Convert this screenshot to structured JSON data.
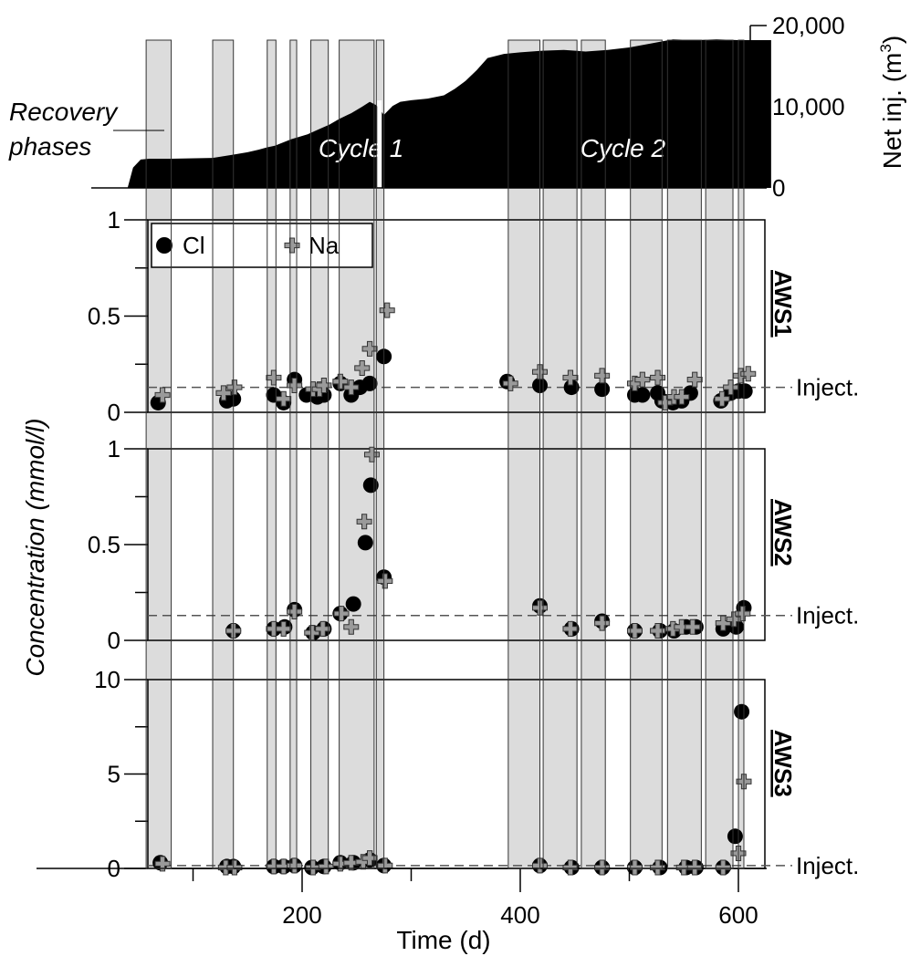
{
  "chart_data": {
    "type": "scatter",
    "x_axis": {
      "label": "Time (d)",
      "range": [
        40,
        630
      ],
      "ticks": [
        200,
        400,
        600
      ],
      "tick_labels": [
        "200",
        "400",
        "600"
      ],
      "minor_ticks": [
        100,
        300,
        500
      ]
    },
    "y_axis_label": "Concentration (mmol/l)",
    "recovery_phases_label_line1": "Recovery",
    "recovery_phases_label_line2": "phases",
    "recovery_phases": [
      [
        57,
        80
      ],
      [
        118,
        137
      ],
      [
        168,
        176
      ],
      [
        189,
        195
      ],
      [
        208,
        224
      ],
      [
        234,
        266
      ],
      [
        268,
        275
      ],
      [
        389,
        418
      ],
      [
        421,
        452
      ],
      [
        456,
        478
      ],
      [
        501,
        530
      ],
      [
        535,
        566
      ],
      [
        570,
        595
      ],
      [
        600,
        605
      ]
    ],
    "legend": {
      "entries": [
        {
          "name": "Cl",
          "marker": "circle"
        },
        {
          "name": "Na",
          "marker": "plus"
        }
      ]
    },
    "top_panel": {
      "ylabel": "Net inj. (m³)",
      "ylabel_main": "Net inj. (m",
      "ylabel_sup": "3",
      "ylabel_close": ")",
      "ylim": [
        0,
        20000
      ],
      "ticks": [
        0,
        10000,
        20000
      ],
      "tick_labels": [
        "0",
        "10,000",
        "20,000"
      ],
      "cycle_labels": [
        "Cycle 1",
        "Cycle 2"
      ],
      "cycle_label_x": [
        215,
        455
      ],
      "series": [
        {
          "x": 40,
          "y": 0
        },
        {
          "x": 45,
          "y": 2500
        },
        {
          "x": 52,
          "y": 3500
        },
        {
          "x": 60,
          "y": 3600
        },
        {
          "x": 80,
          "y": 3600
        },
        {
          "x": 118,
          "y": 3700
        },
        {
          "x": 137,
          "y": 4100
        },
        {
          "x": 150,
          "y": 4400
        },
        {
          "x": 160,
          "y": 4700
        },
        {
          "x": 168,
          "y": 5000
        },
        {
          "x": 175,
          "y": 5200
        },
        {
          "x": 190,
          "y": 6000
        },
        {
          "x": 205,
          "y": 6600
        },
        {
          "x": 215,
          "y": 7200
        },
        {
          "x": 225,
          "y": 7800
        },
        {
          "x": 234,
          "y": 8500
        },
        {
          "x": 245,
          "y": 9200
        },
        {
          "x": 255,
          "y": 10000
        },
        {
          "x": 262,
          "y": 10600
        },
        {
          "x": 268,
          "y": 10200
        },
        {
          "x": 275,
          "y": 9000
        },
        {
          "x": 283,
          "y": 10100
        },
        {
          "x": 290,
          "y": 10600
        },
        {
          "x": 300,
          "y": 10800
        },
        {
          "x": 315,
          "y": 11000
        },
        {
          "x": 330,
          "y": 11400
        },
        {
          "x": 340,
          "y": 12200
        },
        {
          "x": 350,
          "y": 13200
        },
        {
          "x": 360,
          "y": 14500
        },
        {
          "x": 370,
          "y": 16000
        },
        {
          "x": 385,
          "y": 16500
        },
        {
          "x": 400,
          "y": 16700
        },
        {
          "x": 420,
          "y": 16900
        },
        {
          "x": 440,
          "y": 17000
        },
        {
          "x": 460,
          "y": 16800
        },
        {
          "x": 480,
          "y": 17000
        },
        {
          "x": 500,
          "y": 17300
        },
        {
          "x": 520,
          "y": 17800
        },
        {
          "x": 540,
          "y": 18300
        },
        {
          "x": 560,
          "y": 18200
        },
        {
          "x": 580,
          "y": 18300
        },
        {
          "x": 600,
          "y": 18200
        },
        {
          "x": 630,
          "y": 18200
        }
      ],
      "gap_x": 268
    },
    "panels": [
      {
        "name": "AWS1",
        "ylim": [
          0,
          1
        ],
        "ticks": [
          0,
          0.5,
          1
        ],
        "tick_labels": [
          "0",
          "0.5",
          "1"
        ],
        "minor_ticks": [
          0.25,
          0.75
        ],
        "inject_level": 0.13,
        "inject_label": "Inject.",
        "cl": [
          [
            68,
            0.05
          ],
          [
            131,
            0.06
          ],
          [
            137,
            0.07
          ],
          [
            174,
            0.09
          ],
          [
            183,
            0.05
          ],
          [
            193,
            0.17
          ],
          [
            204,
            0.09
          ],
          [
            214,
            0.08
          ],
          [
            220,
            0.09
          ],
          [
            235,
            0.15
          ],
          [
            245,
            0.09
          ],
          [
            253,
            0.13
          ],
          [
            262,
            0.15
          ],
          [
            275,
            0.29
          ],
          [
            388,
            0.16
          ],
          [
            418,
            0.14
          ],
          [
            447,
            0.13
          ],
          [
            475,
            0.12
          ],
          [
            505,
            0.09
          ],
          [
            512,
            0.09
          ],
          [
            526,
            0.1
          ],
          [
            530,
            0.06
          ],
          [
            540,
            0.05
          ],
          [
            548,
            0.06
          ],
          [
            556,
            0.1
          ],
          [
            584,
            0.06
          ],
          [
            593,
            0.1
          ],
          [
            600,
            0.11
          ],
          [
            606,
            0.11
          ]
        ],
        "na": [
          [
            72,
            0.09
          ],
          [
            128,
            0.1
          ],
          [
            138,
            0.13
          ],
          [
            174,
            0.18
          ],
          [
            183,
            0.07
          ],
          [
            193,
            0.14
          ],
          [
            210,
            0.12
          ],
          [
            216,
            0.12
          ],
          [
            220,
            0.14
          ],
          [
            235,
            0.16
          ],
          [
            245,
            0.13
          ],
          [
            255,
            0.23
          ],
          [
            262,
            0.33
          ],
          [
            278,
            0.53
          ],
          [
            391,
            0.15
          ],
          [
            418,
            0.21
          ],
          [
            446,
            0.18
          ],
          [
            475,
            0.19
          ],
          [
            505,
            0.15
          ],
          [
            512,
            0.17
          ],
          [
            526,
            0.18
          ],
          [
            533,
            0.05
          ],
          [
            541,
            0.08
          ],
          [
            548,
            0.08
          ],
          [
            560,
            0.17
          ],
          [
            585,
            0.07
          ],
          [
            593,
            0.13
          ],
          [
            602,
            0.19
          ],
          [
            609,
            0.2
          ]
        ]
      },
      {
        "name": "AWS2",
        "ylim": [
          0,
          1
        ],
        "ticks": [
          0,
          0.5,
          1
        ],
        "tick_labels": [
          "0",
          "0.5",
          "1"
        ],
        "minor_ticks": [
          0.25,
          0.75
        ],
        "inject_level": 0.13,
        "inject_label": "Inject.",
        "cl": [
          [
            137,
            0.05
          ],
          [
            174,
            0.06
          ],
          [
            184,
            0.07
          ],
          [
            193,
            0.16
          ],
          [
            210,
            0.04
          ],
          [
            220,
            0.06
          ],
          [
            235,
            0.14
          ],
          [
            247,
            0.19
          ],
          [
            258,
            0.51
          ],
          [
            263,
            0.81
          ],
          [
            275,
            0.33
          ],
          [
            418,
            0.18
          ],
          [
            447,
            0.06
          ],
          [
            475,
            0.1
          ],
          [
            505,
            0.05
          ],
          [
            528,
            0.05
          ],
          [
            541,
            0.05
          ],
          [
            552,
            0.07
          ],
          [
            561,
            0.07
          ],
          [
            586,
            0.06
          ],
          [
            598,
            0.07
          ],
          [
            605,
            0.17
          ]
        ],
        "na": [
          [
            137,
            0.05
          ],
          [
            174,
            0.06
          ],
          [
            183,
            0.06
          ],
          [
            193,
            0.15
          ],
          [
            209,
            0.04
          ],
          [
            219,
            0.06
          ],
          [
            236,
            0.14
          ],
          [
            245,
            0.07
          ],
          [
            257,
            0.62
          ],
          [
            264,
            0.97
          ],
          [
            276,
            0.31
          ],
          [
            418,
            0.17
          ],
          [
            446,
            0.06
          ],
          [
            475,
            0.09
          ],
          [
            505,
            0.05
          ],
          [
            526,
            0.05
          ],
          [
            540,
            0.06
          ],
          [
            548,
            0.07
          ],
          [
            558,
            0.07
          ],
          [
            586,
            0.09
          ],
          [
            596,
            0.11
          ],
          [
            604,
            0.14
          ]
        ]
      },
      {
        "name": "AWS3",
        "ylim": [
          0,
          10
        ],
        "ticks": [
          0,
          5,
          10
        ],
        "tick_labels": [
          "0",
          "5",
          "10"
        ],
        "minor_ticks": [
          2.5,
          7.5
        ],
        "inject_level": 0.15,
        "inject_label": "Inject.",
        "cl": [
          [
            70,
            0.3
          ],
          [
            131,
            0.1
          ],
          [
            137,
            0.1
          ],
          [
            174,
            0.1
          ],
          [
            183,
            0.1
          ],
          [
            193,
            0.15
          ],
          [
            209,
            0.05
          ],
          [
            220,
            0.1
          ],
          [
            235,
            0.3
          ],
          [
            247,
            0.3
          ],
          [
            262,
            0.45
          ],
          [
            275,
            0.15
          ],
          [
            418,
            0.15
          ],
          [
            447,
            0.05
          ],
          [
            475,
            0.05
          ],
          [
            505,
            0.05
          ],
          [
            528,
            0.05
          ],
          [
            552,
            0.05
          ],
          [
            561,
            0.05
          ],
          [
            586,
            0.05
          ],
          [
            597,
            1.7
          ],
          [
            603,
            8.3
          ]
        ],
        "na": [
          [
            72,
            0.25
          ],
          [
            130,
            0.05
          ],
          [
            138,
            0.05
          ],
          [
            174,
            0.1
          ],
          [
            183,
            0.1
          ],
          [
            193,
            0.15
          ],
          [
            210,
            0.05
          ],
          [
            222,
            0.1
          ],
          [
            235,
            0.25
          ],
          [
            245,
            0.3
          ],
          [
            256,
            0.35
          ],
          [
            262,
            0.55
          ],
          [
            276,
            0.15
          ],
          [
            418,
            0.15
          ],
          [
            446,
            0.05
          ],
          [
            475,
            0.05
          ],
          [
            505,
            0.05
          ],
          [
            526,
            0.05
          ],
          [
            550,
            0.05
          ],
          [
            560,
            0.05
          ],
          [
            586,
            0.05
          ],
          [
            600,
            0.8
          ],
          [
            605,
            4.6
          ]
        ]
      }
    ]
  }
}
